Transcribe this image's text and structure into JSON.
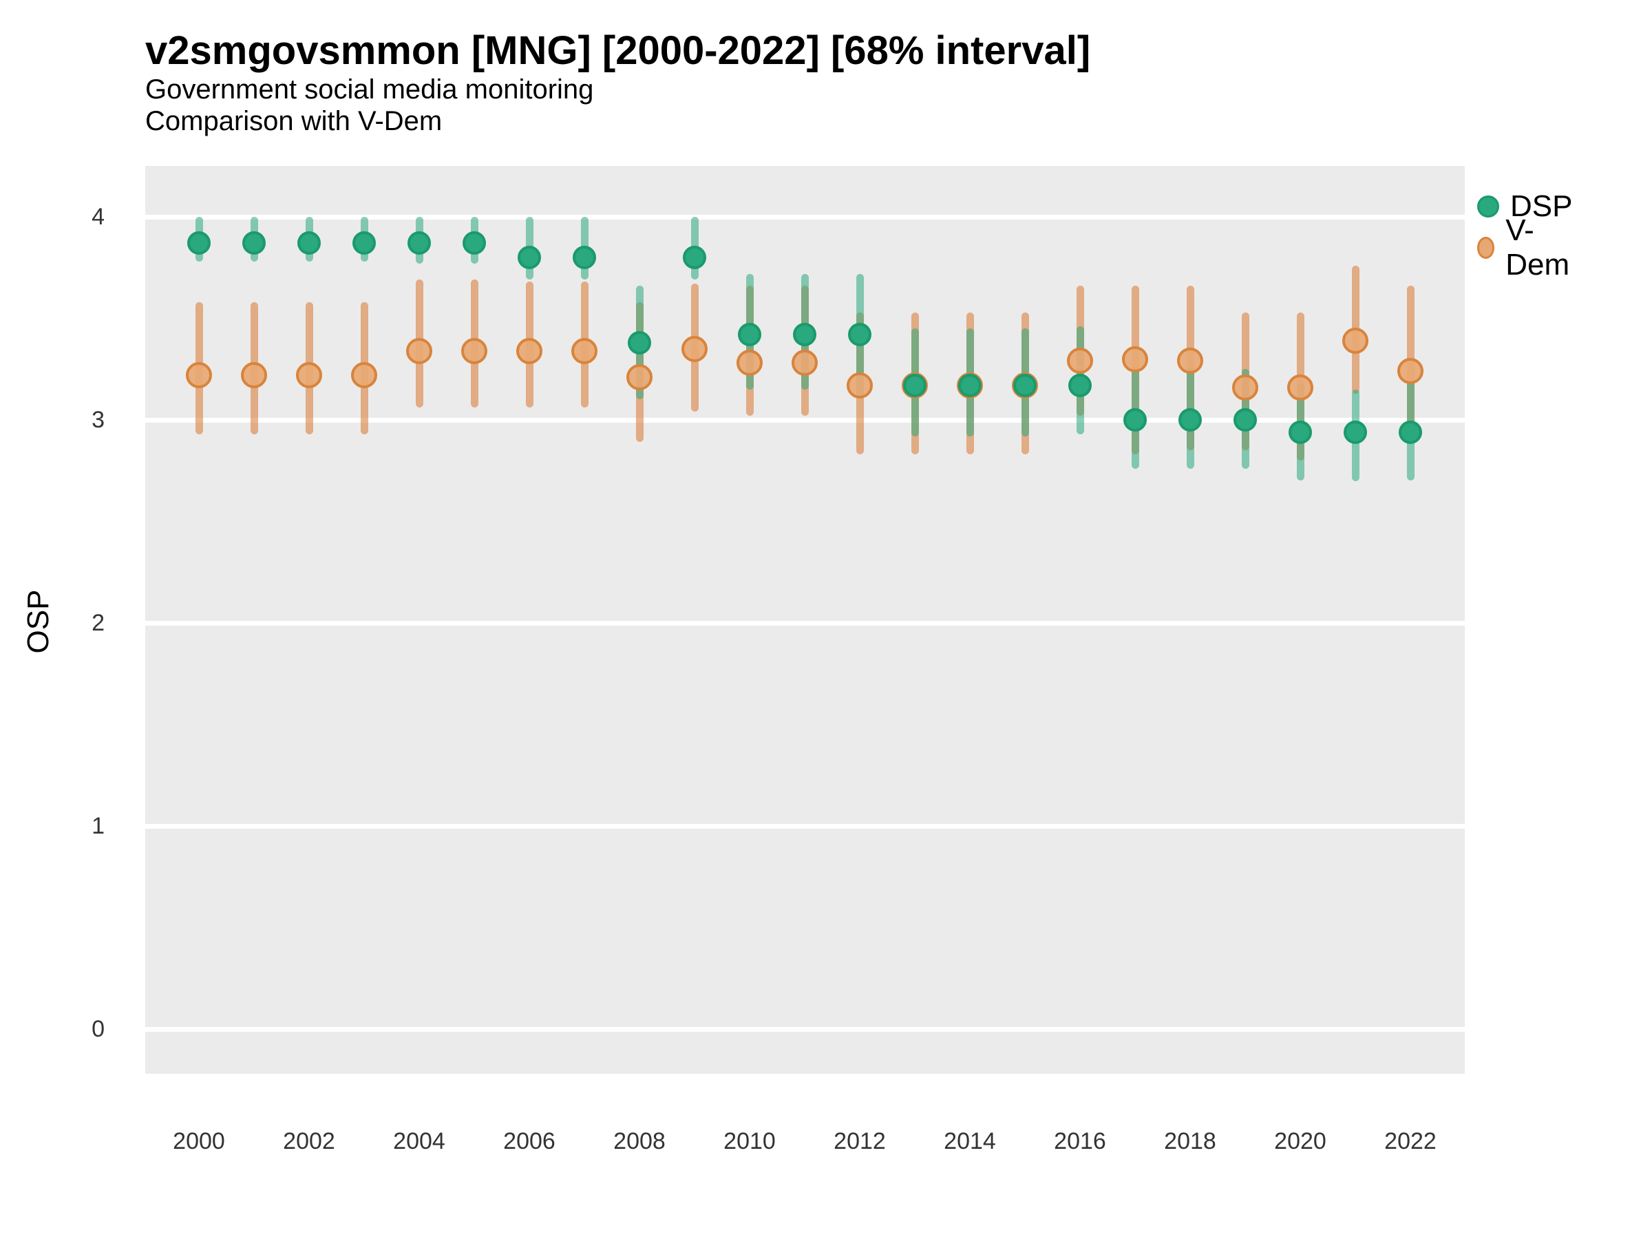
{
  "header": {
    "title": "v2smgovsmmon [MNG] [2000-2022] [68% interval]",
    "subtitle1": "Government social media monitoring",
    "subtitle2": "Comparison with V-Dem"
  },
  "legend": {
    "dsp_label": "DSP",
    "vdem_label": "V-Dem"
  },
  "colors": {
    "panel_background": "#EBEBEB",
    "gridline": "#FFFFFF",
    "dsp_point": "#2AA87E",
    "dsp_point_border": "#1B9A6C",
    "dsp_errorbar": "rgba(42,168,126,0.55)",
    "vdem_point": "#E8A873",
    "vdem_point_border": "#D8843C",
    "vdem_errorbar": "rgba(217,119,47,0.55)"
  },
  "chart_data": {
    "type": "scatter",
    "title": "v2smgovsmmon [MNG] [2000-2022] [68% interval]",
    "subtitle": "Government social media monitoring",
    "subtitle2": "Comparison with V-Dem",
    "interval": "68%",
    "xlabel": "",
    "ylabel": "OSP",
    "ylim": [
      0,
      4
    ],
    "y_ticks": [
      0,
      1,
      2,
      3,
      4
    ],
    "x_ticks": [
      2000,
      2002,
      2004,
      2006,
      2008,
      2010,
      2012,
      2014,
      2016,
      2018,
      2020,
      2022
    ],
    "grid": "on",
    "legend_position": "right",
    "x": [
      2000,
      2001,
      2002,
      2003,
      2004,
      2005,
      2006,
      2007,
      2008,
      2009,
      2010,
      2011,
      2012,
      2013,
      2014,
      2015,
      2016,
      2017,
      2018,
      2019,
      2020,
      2021,
      2022
    ],
    "series": [
      {
        "name": "V-Dem",
        "est": [
          3.22,
          3.22,
          3.22,
          3.22,
          3.34,
          3.34,
          3.34,
          3.34,
          3.21,
          3.35,
          3.28,
          3.28,
          3.17,
          3.17,
          3.17,
          3.17,
          3.29,
          3.3,
          3.29,
          3.16,
          3.16,
          3.39,
          3.24
        ],
        "lo": [
          2.93,
          2.93,
          2.93,
          2.93,
          3.06,
          3.06,
          3.06,
          3.06,
          2.89,
          3.04,
          3.02,
          3.02,
          2.83,
          2.83,
          2.83,
          2.83,
          3.02,
          2.83,
          2.85,
          2.85,
          2.8,
          3.13,
          2.93
        ],
        "hi": [
          3.58,
          3.58,
          3.58,
          3.58,
          3.69,
          3.69,
          3.68,
          3.68,
          3.58,
          3.67,
          3.66,
          3.66,
          3.53,
          3.53,
          3.53,
          3.53,
          3.66,
          3.66,
          3.66,
          3.53,
          3.53,
          3.76,
          3.66
        ]
      },
      {
        "name": "DSP",
        "est": [
          3.87,
          3.87,
          3.87,
          3.87,
          3.87,
          3.87,
          3.8,
          3.8,
          3.38,
          3.8,
          3.42,
          3.42,
          3.42,
          3.17,
          3.17,
          3.17,
          3.17,
          3.0,
          3.0,
          3.0,
          2.94,
          2.94,
          2.94
        ],
        "lo": [
          3.78,
          3.78,
          3.78,
          3.78,
          3.77,
          3.77,
          3.69,
          3.69,
          3.1,
          3.69,
          3.15,
          3.15,
          3.11,
          2.92,
          2.92,
          2.92,
          2.93,
          2.76,
          2.76,
          2.76,
          2.7,
          2.7,
          2.7
        ],
        "hi": [
          4.0,
          4.0,
          4.0,
          4.0,
          4.0,
          4.0,
          4.0,
          4.0,
          3.66,
          4.0,
          3.72,
          3.72,
          3.72,
          3.45,
          3.45,
          3.45,
          3.46,
          3.26,
          3.26,
          3.25,
          3.18,
          3.15,
          3.19
        ]
      }
    ]
  }
}
